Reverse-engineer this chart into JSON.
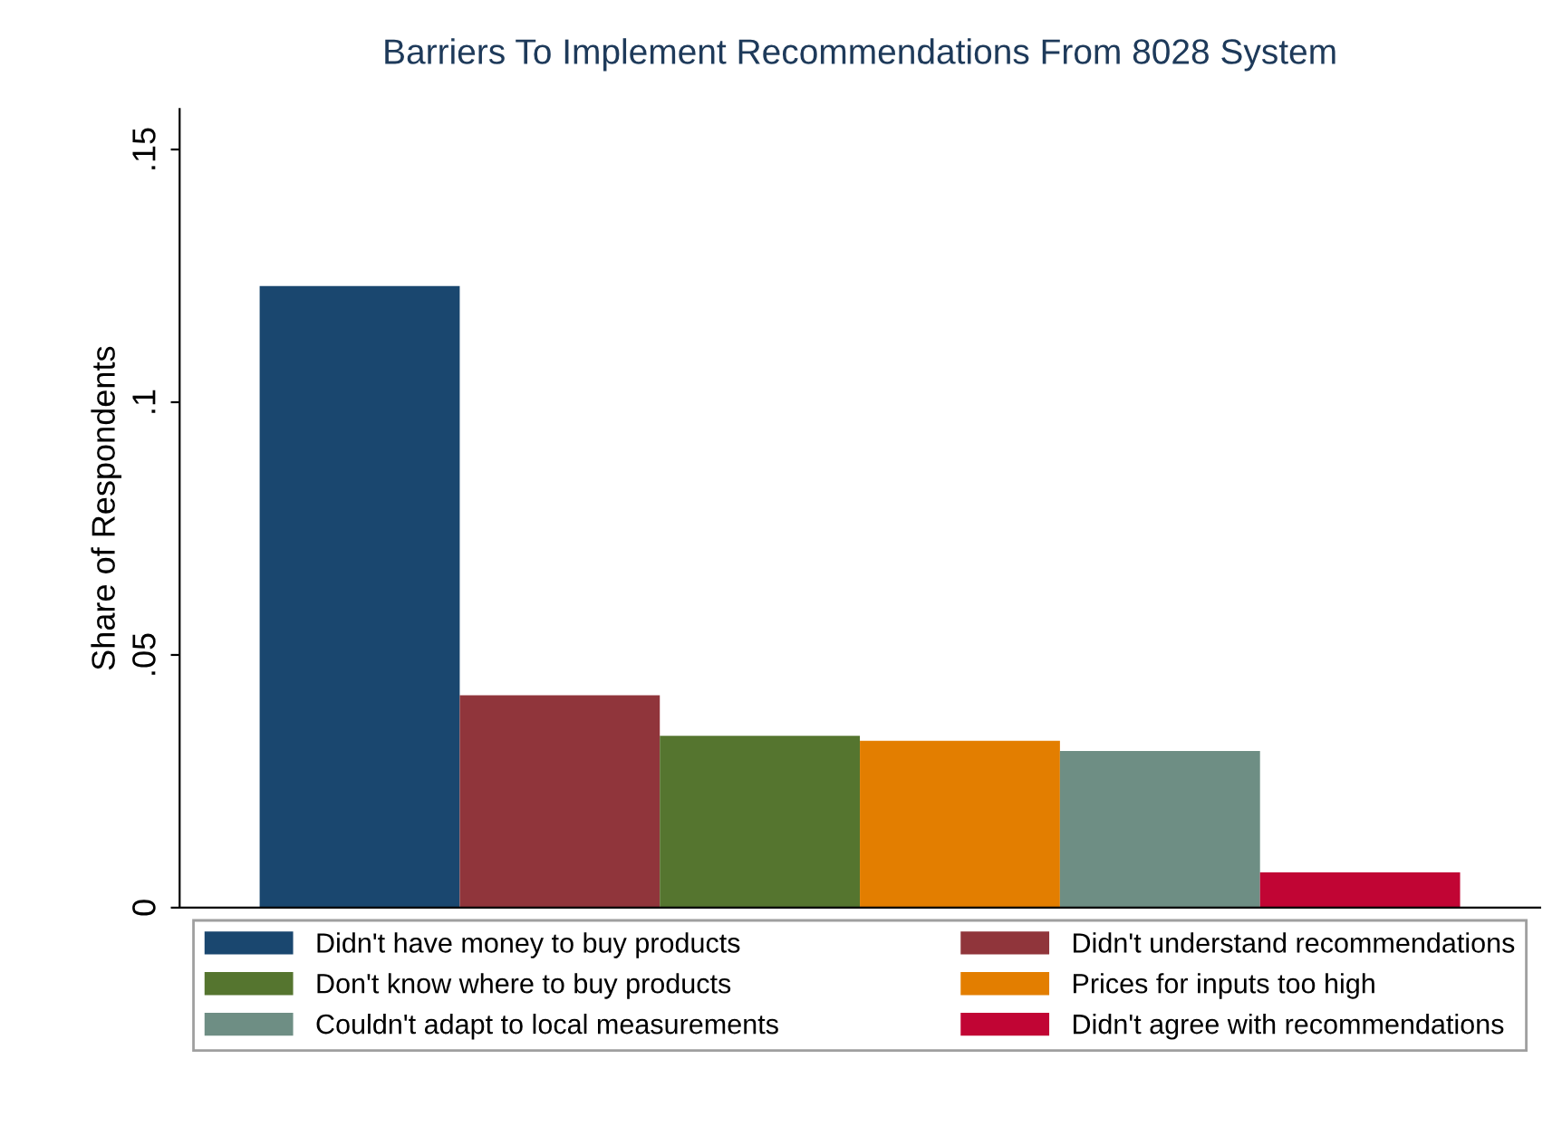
{
  "chart_data": {
    "type": "bar",
    "title": "Barriers To Implement Recommendations From 8028 System",
    "ylabel": "Share of Respondents",
    "categories": [
      null
    ],
    "series": [
      {
        "name": "Didn't have money to buy products",
        "color": "#1a476f",
        "values": [
          0.123
        ]
      },
      {
        "name": "Didn't understand recommendations",
        "color": "#90353b",
        "values": [
          0.042
        ]
      },
      {
        "name": "Don't know where to buy products",
        "color": "#55752f",
        "values": [
          0.034
        ]
      },
      {
        "name": "Prices for inputs too high",
        "color": "#e37e00",
        "values": [
          0.033
        ]
      },
      {
        "name": "Couldn't adapt to local measurements",
        "color": "#6e8e84",
        "values": [
          0.031
        ]
      },
      {
        "name": "Didn't agree with recommendations",
        "color": "#c10534",
        "values": [
          0.007
        ]
      }
    ],
    "ylim": [
      0,
      0.158
    ],
    "yticks": [
      {
        "value": 0,
        "label": "0"
      },
      {
        "value": 0.05,
        "label": ".05"
      },
      {
        "value": 0.1,
        "label": ".1"
      },
      {
        "value": 0.15,
        "label": ".15"
      }
    ],
    "grid": false,
    "legend": "bottom"
  }
}
